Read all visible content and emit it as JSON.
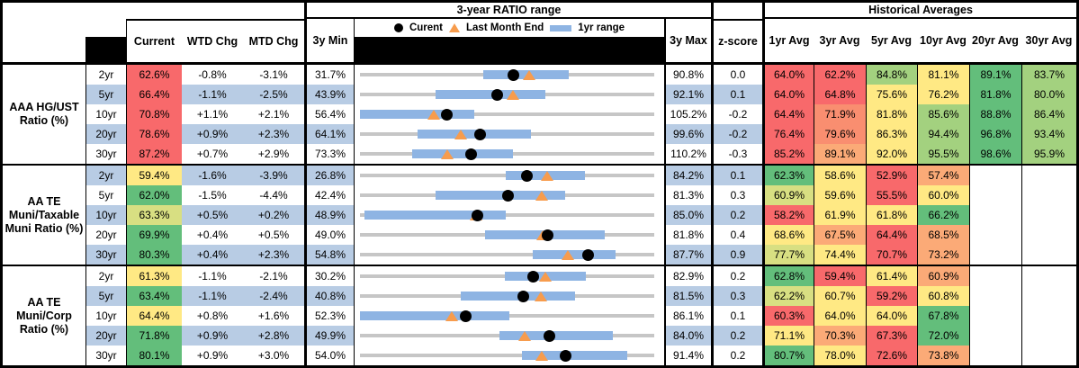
{
  "palette": {
    "heat_red": "#F8696B",
    "heat_salmon": "#F98E70",
    "heat_orange": "#FBAA77",
    "heat_yellow": "#FFE984",
    "heat_yellowgreen": "#D8DF82",
    "heat_lightgreen": "#A3D17F",
    "heat_green": "#63BE7B",
    "stripe_blue": "#B8CCE4",
    "bar_blue": "#8EB4E3",
    "track_gray": "#C6C6C6",
    "marker_orange": "#F79C4D",
    "marker_black": "#000000"
  },
  "header": {
    "ratio_range_title": "3-year RATIO range",
    "historical_title": "Historical Averages",
    "legend": {
      "current": "Curent",
      "last_month": "Last Month End",
      "range": "1yr range"
    },
    "cols": {
      "current": "Current",
      "wtd": "WTD Chg",
      "mtd": "MTD Chg",
      "min": "3y Min",
      "max": "3y Max",
      "z": "z-score"
    },
    "avg_cols": [
      "1yr Avg",
      "3yr Avg",
      "5yr Avg",
      "10yr Avg",
      "20yr Avg",
      "30yr Avg"
    ]
  },
  "groups": [
    {
      "label": "AAA HG/UST Ratio (%)",
      "rows": [
        {
          "tenor": "2yr",
          "current": "62.6%",
          "current_color": "red",
          "wtd": "-0.8%",
          "mtd": "-3.1%",
          "min": "31.7%",
          "max": "90.8%",
          "z": "0.0",
          "avgs": [
            {
              "v": "64.0%",
              "c": "red"
            },
            {
              "v": "62.2%",
              "c": "red"
            },
            {
              "v": "84.8%",
              "c": "lightgreen"
            },
            {
              "v": "81.1%",
              "c": "yellow"
            },
            {
              "v": "89.1%",
              "c": "green"
            },
            {
              "v": "83.7%",
              "c": "lightgreen"
            }
          ]
        },
        {
          "tenor": "5yr",
          "current": "66.4%",
          "current_color": "red",
          "wtd": "-1.1%",
          "mtd": "-2.5%",
          "min": "43.9%",
          "max": "92.1%",
          "z": "0.1",
          "avgs": [
            {
              "v": "64.0%",
              "c": "red"
            },
            {
              "v": "64.8%",
              "c": "red"
            },
            {
              "v": "75.6%",
              "c": "yellow"
            },
            {
              "v": "76.2%",
              "c": "yellow"
            },
            {
              "v": "81.8%",
              "c": "green"
            },
            {
              "v": "80.0%",
              "c": "lightgreen"
            }
          ]
        },
        {
          "tenor": "10yr",
          "current": "70.8%",
          "current_color": "red",
          "wtd": "+1.1%",
          "mtd": "+2.1%",
          "min": "56.4%",
          "max": "105.2%",
          "z": "-0.2",
          "avgs": [
            {
              "v": "64.4%",
              "c": "red"
            },
            {
              "v": "71.9%",
              "c": "salmon"
            },
            {
              "v": "81.8%",
              "c": "yellow"
            },
            {
              "v": "85.6%",
              "c": "lightgreen"
            },
            {
              "v": "88.8%",
              "c": "green"
            },
            {
              "v": "86.4%",
              "c": "lightgreen"
            }
          ]
        },
        {
          "tenor": "20yr",
          "current": "78.6%",
          "current_color": "red",
          "wtd": "+0.9%",
          "mtd": "+2.3%",
          "min": "64.1%",
          "max": "99.6%",
          "z": "-0.2",
          "avgs": [
            {
              "v": "76.4%",
              "c": "red"
            },
            {
              "v": "79.6%",
              "c": "salmon"
            },
            {
              "v": "86.3%",
              "c": "yellow"
            },
            {
              "v": "94.4%",
              "c": "lightgreen"
            },
            {
              "v": "96.8%",
              "c": "green"
            },
            {
              "v": "93.4%",
              "c": "lightgreen"
            }
          ]
        },
        {
          "tenor": "30yr",
          "current": "87.2%",
          "current_color": "red",
          "wtd": "+0.7%",
          "mtd": "+2.9%",
          "min": "73.3%",
          "max": "110.2%",
          "z": "-0.3",
          "avgs": [
            {
              "v": "85.2%",
              "c": "red"
            },
            {
              "v": "89.1%",
              "c": "orange"
            },
            {
              "v": "92.0%",
              "c": "yellow"
            },
            {
              "v": "95.5%",
              "c": "lightgreen"
            },
            {
              "v": "98.6%",
              "c": "green"
            },
            {
              "v": "95.9%",
              "c": "lightgreen"
            }
          ]
        }
      ]
    },
    {
      "label": "AA TE Muni/Taxable Muni Ratio (%)",
      "rows": [
        {
          "tenor": "2yr",
          "current": "59.4%",
          "current_color": "yellow",
          "wtd": "-1.6%",
          "mtd": "-3.9%",
          "min": "26.8%",
          "max": "84.2%",
          "z": "0.1",
          "avgs": [
            {
              "v": "62.3%",
              "c": "green"
            },
            {
              "v": "58.6%",
              "c": "yellow"
            },
            {
              "v": "52.9%",
              "c": "red"
            },
            {
              "v": "57.4%",
              "c": "orange"
            },
            {
              "v": "",
              "c": "blank"
            },
            {
              "v": "",
              "c": "blank"
            }
          ]
        },
        {
          "tenor": "5yr",
          "current": "62.0%",
          "current_color": "green",
          "wtd": "-1.5%",
          "mtd": "-4.4%",
          "min": "42.4%",
          "max": "81.3%",
          "z": "0.3",
          "avgs": [
            {
              "v": "60.9%",
              "c": "yellowgreen"
            },
            {
              "v": "59.6%",
              "c": "yellow"
            },
            {
              "v": "55.5%",
              "c": "red"
            },
            {
              "v": "60.0%",
              "c": "yellow"
            },
            {
              "v": "",
              "c": "blank"
            },
            {
              "v": "",
              "c": "blank"
            }
          ]
        },
        {
          "tenor": "10yr",
          "current": "63.3%",
          "current_color": "yellowgreen",
          "wtd": "+0.5%",
          "mtd": "+0.2%",
          "min": "48.9%",
          "max": "85.0%",
          "z": "0.2",
          "avgs": [
            {
              "v": "58.2%",
              "c": "red"
            },
            {
              "v": "61.9%",
              "c": "yellow"
            },
            {
              "v": "61.8%",
              "c": "yellow"
            },
            {
              "v": "66.2%",
              "c": "green"
            },
            {
              "v": "",
              "c": "blank"
            },
            {
              "v": "",
              "c": "blank"
            }
          ]
        },
        {
          "tenor": "20yr",
          "current": "69.9%",
          "current_color": "green",
          "wtd": "+0.4%",
          "mtd": "+0.5%",
          "min": "49.0%",
          "max": "81.8%",
          "z": "0.4",
          "avgs": [
            {
              "v": "68.6%",
              "c": "yellow"
            },
            {
              "v": "67.5%",
              "c": "orange"
            },
            {
              "v": "64.4%",
              "c": "red"
            },
            {
              "v": "68.5%",
              "c": "orange"
            },
            {
              "v": "",
              "c": "blank"
            },
            {
              "v": "",
              "c": "blank"
            }
          ]
        },
        {
          "tenor": "30yr",
          "current": "80.3%",
          "current_color": "green",
          "wtd": "+0.4%",
          "mtd": "+2.3%",
          "min": "54.8%",
          "max": "87.7%",
          "z": "0.9",
          "avgs": [
            {
              "v": "77.7%",
              "c": "yellowgreen"
            },
            {
              "v": "74.4%",
              "c": "yellow"
            },
            {
              "v": "70.7%",
              "c": "red"
            },
            {
              "v": "73.2%",
              "c": "orange"
            },
            {
              "v": "",
              "c": "blank"
            },
            {
              "v": "",
              "c": "blank"
            }
          ]
        }
      ]
    },
    {
      "label": "AA TE Muni/Corp Ratio (%)",
      "rows": [
        {
          "tenor": "2yr",
          "current": "61.3%",
          "current_color": "yellow",
          "wtd": "-1.1%",
          "mtd": "-2.1%",
          "min": "30.2%",
          "max": "82.9%",
          "z": "0.2",
          "avgs": [
            {
              "v": "62.8%",
              "c": "green"
            },
            {
              "v": "59.4%",
              "c": "red"
            },
            {
              "v": "61.4%",
              "c": "yellow"
            },
            {
              "v": "60.9%",
              "c": "orange"
            },
            {
              "v": "",
              "c": "blank"
            },
            {
              "v": "",
              "c": "blank"
            }
          ]
        },
        {
          "tenor": "5yr",
          "current": "63.4%",
          "current_color": "green",
          "wtd": "-1.1%",
          "mtd": "-2.4%",
          "min": "40.8%",
          "max": "81.5%",
          "z": "0.3",
          "avgs": [
            {
              "v": "62.2%",
              "c": "yellowgreen"
            },
            {
              "v": "60.7%",
              "c": "yellow"
            },
            {
              "v": "59.2%",
              "c": "red"
            },
            {
              "v": "60.8%",
              "c": "yellow"
            },
            {
              "v": "",
              "c": "blank"
            },
            {
              "v": "",
              "c": "blank"
            }
          ]
        },
        {
          "tenor": "10yr",
          "current": "64.4%",
          "current_color": "yellow",
          "wtd": "+0.8%",
          "mtd": "+1.6%",
          "min": "52.3%",
          "max": "86.1%",
          "z": "0.1",
          "avgs": [
            {
              "v": "60.3%",
              "c": "red"
            },
            {
              "v": "64.0%",
              "c": "yellow"
            },
            {
              "v": "64.0%",
              "c": "yellow"
            },
            {
              "v": "67.8%",
              "c": "green"
            },
            {
              "v": "",
              "c": "blank"
            },
            {
              "v": "",
              "c": "blank"
            }
          ]
        },
        {
          "tenor": "20yr",
          "current": "71.8%",
          "current_color": "green",
          "wtd": "+0.9%",
          "mtd": "+2.8%",
          "min": "49.9%",
          "max": "84.0%",
          "z": "0.2",
          "avgs": [
            {
              "v": "71.1%",
              "c": "yellow"
            },
            {
              "v": "70.3%",
              "c": "orange"
            },
            {
              "v": "67.3%",
              "c": "red"
            },
            {
              "v": "72.0%",
              "c": "green"
            },
            {
              "v": "",
              "c": "blank"
            },
            {
              "v": "",
              "c": "blank"
            }
          ]
        },
        {
          "tenor": "30yr",
          "current": "80.1%",
          "current_color": "green",
          "wtd": "+0.9%",
          "mtd": "+3.0%",
          "min": "54.0%",
          "max": "91.4%",
          "z": "0.2",
          "avgs": [
            {
              "v": "80.7%",
              "c": "green"
            },
            {
              "v": "78.0%",
              "c": "yellow"
            },
            {
              "v": "72.6%",
              "c": "red"
            },
            {
              "v": "73.8%",
              "c": "orange"
            },
            {
              "v": "",
              "c": "blank"
            },
            {
              "v": "",
              "c": "blank"
            }
          ]
        }
      ]
    }
  ],
  "chart_data": [
    {
      "type": "scatter",
      "title": "3-year RATIO range — AAA HG/UST Ratio (%)",
      "categories": [
        "2yr",
        "5yr",
        "10yr",
        "20yr",
        "30yr"
      ],
      "series": [
        {
          "name": "3y Min",
          "values": [
            31.7,
            43.9,
            56.4,
            64.1,
            73.3
          ]
        },
        {
          "name": "3y Max",
          "values": [
            90.8,
            92.1,
            105.2,
            99.6,
            110.2
          ]
        },
        {
          "name": "1yr range low (est)",
          "values": [
            56.5,
            56.3,
            56.4,
            71.1,
            79.8
          ]
        },
        {
          "name": "1yr range high (est)",
          "values": [
            73.7,
            74.3,
            75.4,
            84.7,
            92.5
          ]
        },
        {
          "name": "Current",
          "values": [
            62.6,
            66.4,
            70.8,
            78.6,
            87.2
          ]
        },
        {
          "name": "Last Month End",
          "values": [
            65.7,
            68.9,
            68.7,
            76.3,
            84.3
          ]
        }
      ],
      "legend_position": "top",
      "grid": false
    },
    {
      "type": "scatter",
      "title": "3-year RATIO range — AA TE Muni/Taxable Muni Ratio (%)",
      "categories": [
        "2yr",
        "5yr",
        "10yr",
        "20yr",
        "30yr"
      ],
      "series": [
        {
          "name": "3y Min",
          "values": [
            26.8,
            42.4,
            48.9,
            49.0,
            54.8
          ]
        },
        {
          "name": "3y Max",
          "values": [
            84.2,
            81.3,
            85.0,
            81.8,
            87.7
          ]
        },
        {
          "name": "1yr range low (est)",
          "values": [
            55.2,
            52.4,
            49.4,
            62.9,
            74.1
          ]
        },
        {
          "name": "1yr range high (est)",
          "values": [
            70.6,
            69.5,
            66.8,
            76.3,
            83.4
          ]
        },
        {
          "name": "Current",
          "values": [
            59.4,
            62.0,
            63.3,
            69.9,
            80.3
          ]
        },
        {
          "name": "Last Month End",
          "values": [
            63.3,
            66.4,
            63.1,
            69.4,
            78.0
          ]
        }
      ],
      "legend_position": "top",
      "grid": false
    },
    {
      "type": "scatter",
      "title": "3-year RATIO range — AA TE Muni/Corp Ratio (%)",
      "categories": [
        "2yr",
        "5yr",
        "10yr",
        "20yr",
        "30yr"
      ],
      "series": [
        {
          "name": "3y Min",
          "values": [
            30.2,
            40.8,
            52.3,
            49.9,
            54.0
          ]
        },
        {
          "name": "3y Max",
          "values": [
            82.9,
            81.5,
            86.1,
            84.0,
            91.4
          ]
        },
        {
          "name": "1yr range low (est)",
          "values": [
            56.2,
            54.8,
            52.3,
            66.1,
            74.6
          ]
        },
        {
          "name": "1yr range high (est)",
          "values": [
            70.6,
            70.5,
            69.5,
            79.2,
            88.0
          ]
        },
        {
          "name": "Current",
          "values": [
            61.3,
            63.4,
            64.4,
            71.8,
            80.1
          ]
        },
        {
          "name": "Last Month End",
          "values": [
            63.4,
            65.8,
            62.8,
            69.0,
            77.1
          ]
        }
      ],
      "legend_position": "top",
      "grid": false
    }
  ]
}
